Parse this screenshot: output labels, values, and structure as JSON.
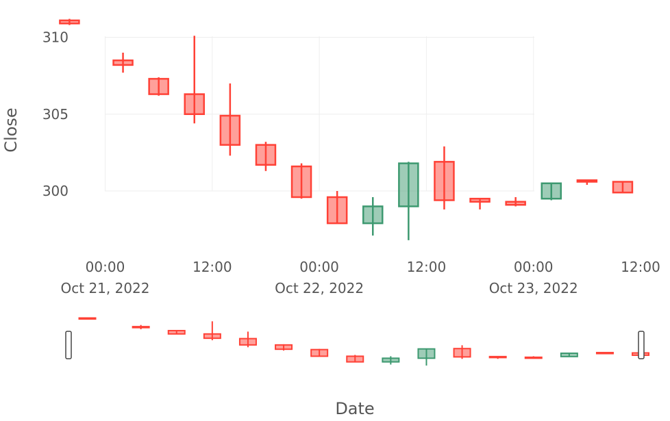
{
  "chart_data": {
    "type": "candlestick",
    "title": "",
    "xlabel": "Date",
    "ylabel": "Close",
    "yticks": [
      300,
      305,
      310
    ],
    "xticks": [
      {
        "value": "2022-10-21 00:00",
        "time": "00:00",
        "date": "Oct 21, 2022"
      },
      {
        "value": "2022-10-21 12:00",
        "time": "12:00",
        "date": ""
      },
      {
        "value": "2022-10-22 00:00",
        "time": "00:00",
        "date": "Oct 22, 2022"
      },
      {
        "value": "2022-10-22 12:00",
        "time": "12:00",
        "date": ""
      },
      {
        "value": "2022-10-23 00:00",
        "time": "00:00",
        "date": "Oct 23, 2022"
      },
      {
        "value": "2022-10-23 12:00",
        "time": "12:00",
        "date": ""
      }
    ],
    "increasing_color": "#3d9970",
    "decreasing_color": "#ff4136",
    "grid": true,
    "rangeslider": true,
    "candles": [
      {
        "x": "2022-10-20 20:00",
        "open": 311.1,
        "high": 311.2,
        "low": 310.8,
        "close": 310.9
      },
      {
        "x": "2022-10-21 02:00",
        "open": 308.5,
        "high": 309.0,
        "low": 307.7,
        "close": 308.2
      },
      {
        "x": "2022-10-21 06:00",
        "open": 307.3,
        "high": 307.4,
        "low": 306.2,
        "close": 306.3
      },
      {
        "x": "2022-10-21 10:00",
        "open": 306.3,
        "high": 310.1,
        "low": 304.4,
        "close": 305.0
      },
      {
        "x": "2022-10-21 14:00",
        "open": 304.9,
        "high": 307.0,
        "low": 302.3,
        "close": 303.0
      },
      {
        "x": "2022-10-21 18:00",
        "open": 303.0,
        "high": 303.2,
        "low": 301.3,
        "close": 301.7
      },
      {
        "x": "2022-10-21 22:00",
        "open": 301.6,
        "high": 301.8,
        "low": 299.5,
        "close": 299.6
      },
      {
        "x": "2022-10-22 02:00",
        "open": 299.6,
        "high": 300.0,
        "low": 297.9,
        "close": 297.9
      },
      {
        "x": "2022-10-22 06:00",
        "open": 297.9,
        "high": 299.6,
        "low": 297.1,
        "close": 299.0
      },
      {
        "x": "2022-10-22 10:00",
        "open": 299.0,
        "high": 301.9,
        "low": 296.8,
        "close": 301.8
      },
      {
        "x": "2022-10-22 14:00",
        "open": 301.9,
        "high": 302.9,
        "low": 298.8,
        "close": 299.4
      },
      {
        "x": "2022-10-22 18:00",
        "open": 299.5,
        "high": 299.5,
        "low": 298.8,
        "close": 299.3
      },
      {
        "x": "2022-10-22 22:00",
        "open": 299.3,
        "high": 299.6,
        "low": 299.0,
        "close": 299.1
      },
      {
        "x": "2022-10-23 02:00",
        "open": 299.5,
        "high": 300.5,
        "low": 299.4,
        "close": 300.5
      },
      {
        "x": "2022-10-23 06:00",
        "open": 300.7,
        "high": 300.7,
        "low": 300.4,
        "close": 300.6
      },
      {
        "x": "2022-10-23 10:00",
        "open": 300.6,
        "high": 300.6,
        "low": 299.9,
        "close": 299.9
      }
    ]
  }
}
